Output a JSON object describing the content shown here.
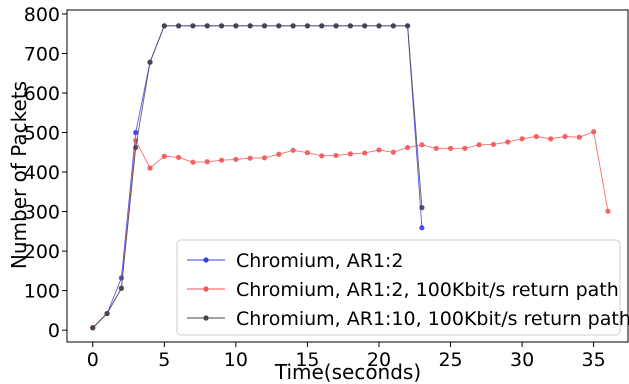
{
  "chart_data": {
    "type": "line",
    "title": "",
    "xlabel": "Time(seconds)",
    "ylabel": "Number of Packets",
    "xlim": [
      -1.8,
      37.4
    ],
    "ylim": [
      -30,
      810
    ],
    "xticks": [
      0,
      5,
      10,
      15,
      20,
      25,
      30,
      35
    ],
    "yticks": [
      0,
      100,
      200,
      300,
      400,
      500,
      600,
      700,
      800
    ],
    "grid": false,
    "legend_position": "bottom-right",
    "series": [
      {
        "name": "Chromium, AR1:2",
        "color": "#3b3bf5",
        "x": [
          0,
          1,
          2,
          3,
          4,
          5,
          6,
          7,
          8,
          9,
          10,
          11,
          12,
          13,
          14,
          15,
          16,
          17,
          18,
          19,
          20,
          21,
          22,
          23
        ],
        "y": [
          6,
          42,
          132,
          500,
          678,
          770,
          770,
          770,
          770,
          770,
          770,
          770,
          770,
          770,
          770,
          770,
          770,
          770,
          770,
          770,
          770,
          770,
          770,
          259
        ]
      },
      {
        "name": "Chromium, AR1:2, 100Kbit/s return path",
        "color": "#f25555",
        "x": [
          0,
          1,
          2,
          3,
          4,
          5,
          6,
          7,
          8,
          9,
          10,
          11,
          12,
          13,
          14,
          15,
          16,
          17,
          18,
          19,
          20,
          21,
          22,
          23,
          24,
          25,
          26,
          27,
          28,
          29,
          30,
          31,
          32,
          33,
          34,
          35,
          36
        ],
        "y": [
          6,
          42,
          106,
          480,
          410,
          440,
          437,
          425,
          426,
          430,
          432,
          435,
          436,
          445,
          455,
          449,
          441,
          442,
          446,
          448,
          456,
          450,
          462,
          469,
          460,
          460,
          460,
          469,
          470,
          476,
          484,
          490,
          484,
          490,
          488,
          502,
          301
        ]
      },
      {
        "name": "Chromium, AR1:10, 100Kbit/s return path",
        "color": "#444444",
        "x": [
          0,
          1,
          2,
          3,
          4,
          5,
          6,
          7,
          8,
          9,
          10,
          11,
          12,
          13,
          14,
          15,
          16,
          17,
          18,
          19,
          20,
          21,
          22,
          23
        ],
        "y": [
          6,
          42,
          106,
          462,
          678,
          770,
          770,
          770,
          770,
          770,
          770,
          770,
          770,
          770,
          770,
          770,
          770,
          770,
          770,
          770,
          770,
          770,
          770,
          310
        ]
      }
    ]
  }
}
